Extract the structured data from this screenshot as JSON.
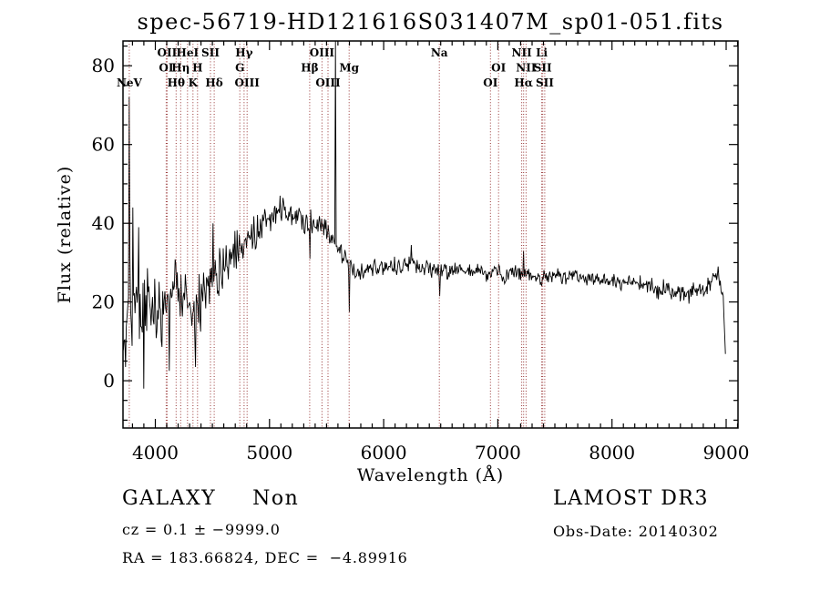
{
  "title": "spec-56719-HD121616S031407M_sp01-051.fits",
  "annotations": {
    "class": "GALAXY",
    "subclass": "Non",
    "cz": "cz = 0.1 ± −9999.0",
    "radec": "RA = 183.66824, DEC =  −4.89916",
    "survey": "LAMOST DR3",
    "obs_date": "Obs-Date: 20140302"
  },
  "chart_data": {
    "type": "line",
    "title": "spec-56719-HD121616S031407M_sp01-051.fits",
    "xlabel": "Wavelength (Å)",
    "ylabel": "Flux (relative)",
    "xlim": [
      3717,
      9104
    ],
    "ylim": [
      -12,
      86.3
    ],
    "xticks": [
      4000,
      5000,
      6000,
      7000,
      8000,
      9000
    ],
    "yticks": [
      0,
      20,
      40,
      60,
      80
    ],
    "x_minor_step": 100,
    "y_minor_step": 5,
    "grid": false,
    "line_color": "#000000",
    "marker_color": "#963232",
    "legend": "none",
    "spectral_lines": [
      {
        "label": "NeV",
        "row": 3,
        "wavelength": 3772
      },
      {
        "label": "OII",
        "row": 1,
        "wavelength": 4103
      },
      {
        "label": "OI",
        "row": 2,
        "wavelength": 4095
      },
      {
        "label": "Hθ",
        "row": 3,
        "wavelength": 4182
      },
      {
        "label": "Hη",
        "row": 2,
        "wavelength": 4222
      },
      {
        "label": "HeI",
        "row": 1,
        "wavelength": 4282
      },
      {
        "label": "K",
        "row": 3,
        "wavelength": 4330
      },
      {
        "label": "H",
        "row": 2,
        "wavelength": 4370
      },
      {
        "label": "SII",
        "row": 1,
        "wavelength": 4483
      },
      {
        "label": "Hδ",
        "row": 3,
        "wavelength": 4516
      },
      {
        "label": "G",
        "row": 2,
        "wavelength": 4740
      },
      {
        "label": "Hγ",
        "row": 1,
        "wavelength": 4778
      },
      {
        "label": "OIII",
        "row": 3,
        "wavelength": 4804
      },
      {
        "label": "Hβ",
        "row": 2,
        "wavelength": 5352
      },
      {
        "label": "OIII",
        "row": 1,
        "wavelength": 5460
      },
      {
        "label": "OIII",
        "row": 3,
        "wavelength": 5513
      },
      {
        "label": "Mg",
        "row": 2,
        "wavelength": 5698
      },
      {
        "label": "Na",
        "row": 1,
        "wavelength": 6488
      },
      {
        "label": "OI",
        "row": 3,
        "wavelength": 6936
      },
      {
        "label": "OI",
        "row": 2,
        "wavelength": 7007
      },
      {
        "label": "NII",
        "row": 1,
        "wavelength": 7209
      },
      {
        "label": "Hα",
        "row": 3,
        "wavelength": 7226
      },
      {
        "label": "NII",
        "row": 2,
        "wavelength": 7248
      },
      {
        "label": "Li",
        "row": 1,
        "wavelength": 7385
      },
      {
        "label": "SII",
        "row": 2,
        "wavelength": 7394
      },
      {
        "label": "SII",
        "row": 3,
        "wavelength": 7411
      }
    ],
    "spectrum": {
      "range": [
        3720,
        9000
      ],
      "anchors": [
        [
          3720,
          13,
          13
        ],
        [
          3770,
          19,
          15
        ],
        [
          3820,
          21,
          16
        ],
        [
          3880,
          19,
          15
        ],
        [
          3950,
          17,
          13
        ],
        [
          4030,
          19,
          12
        ],
        [
          4120,
          21,
          11
        ],
        [
          4200,
          23,
          10
        ],
        [
          4280,
          19,
          9.5
        ],
        [
          4350,
          17,
          9
        ],
        [
          4430,
          23,
          8
        ],
        [
          4490,
          28,
          8.5
        ],
        [
          4560,
          27,
          7
        ],
        [
          4650,
          31,
          6.5
        ],
        [
          4750,
          34,
          5.5
        ],
        [
          4850,
          37,
          5
        ],
        [
          4950,
          40,
          4.5
        ],
        [
          5050,
          42,
          4.2
        ],
        [
          5150,
          43,
          4
        ],
        [
          5250,
          42,
          4
        ],
        [
          5350,
          40,
          4.2
        ],
        [
          5450,
          40,
          4.2
        ],
        [
          5540,
          37,
          3.6
        ],
        [
          5610,
          33,
          3.4
        ],
        [
          5690,
          29,
          3
        ],
        [
          5780,
          28,
          2.6
        ],
        [
          5880,
          28,
          2.6
        ],
        [
          5980,
          29,
          2.6
        ],
        [
          6080,
          29,
          2.6
        ],
        [
          6180,
          29.5,
          2.6
        ],
        [
          6280,
          29,
          2.8
        ],
        [
          6380,
          28.5,
          2.6
        ],
        [
          6480,
          28.5,
          2.6
        ],
        [
          6580,
          28,
          2.6
        ],
        [
          6680,
          28,
          2.6
        ],
        [
          6780,
          27.5,
          2.6
        ],
        [
          6880,
          27.5,
          2.6
        ],
        [
          6980,
          27.5,
          2.6
        ],
        [
          7080,
          27,
          2.6
        ],
        [
          7180,
          27,
          2.6
        ],
        [
          7280,
          26.5,
          2.6
        ],
        [
          7380,
          26,
          2.6
        ],
        [
          7480,
          26.5,
          2.4
        ],
        [
          7580,
          26,
          2.4
        ],
        [
          7680,
          26.5,
          2.2
        ],
        [
          7780,
          26,
          2.2
        ],
        [
          7880,
          25.5,
          2.2
        ],
        [
          7980,
          25.5,
          2.2
        ],
        [
          8080,
          25,
          2.4
        ],
        [
          8180,
          25,
          2.4
        ],
        [
          8280,
          24.5,
          2.6
        ],
        [
          8380,
          23.5,
          2.8
        ],
        [
          8480,
          23,
          2.9
        ],
        [
          8580,
          21.5,
          3
        ],
        [
          8680,
          22,
          3
        ],
        [
          8780,
          23,
          3
        ],
        [
          8880,
          25,
          2.8
        ],
        [
          8930,
          26.5,
          2
        ],
        [
          8975,
          21,
          1.5
        ],
        [
          8993,
          8,
          1
        ],
        [
          9000,
          0.8,
          0.4
        ]
      ],
      "spikes": [
        [
          3772,
          72
        ],
        [
          3805,
          44
        ],
        [
          3853,
          39
        ],
        [
          3900,
          -2
        ],
        [
          4120,
          2.5
        ],
        [
          4355,
          3.5
        ],
        [
          4505,
          40
        ],
        [
          5095,
          47
        ],
        [
          5352,
          31
        ],
        [
          5577,
          86.3
        ],
        [
          5698,
          17.5
        ],
        [
          6240,
          34.5
        ],
        [
          6490,
          21.5
        ],
        [
          7226,
          33
        ],
        [
          8930,
          29
        ]
      ]
    }
  }
}
